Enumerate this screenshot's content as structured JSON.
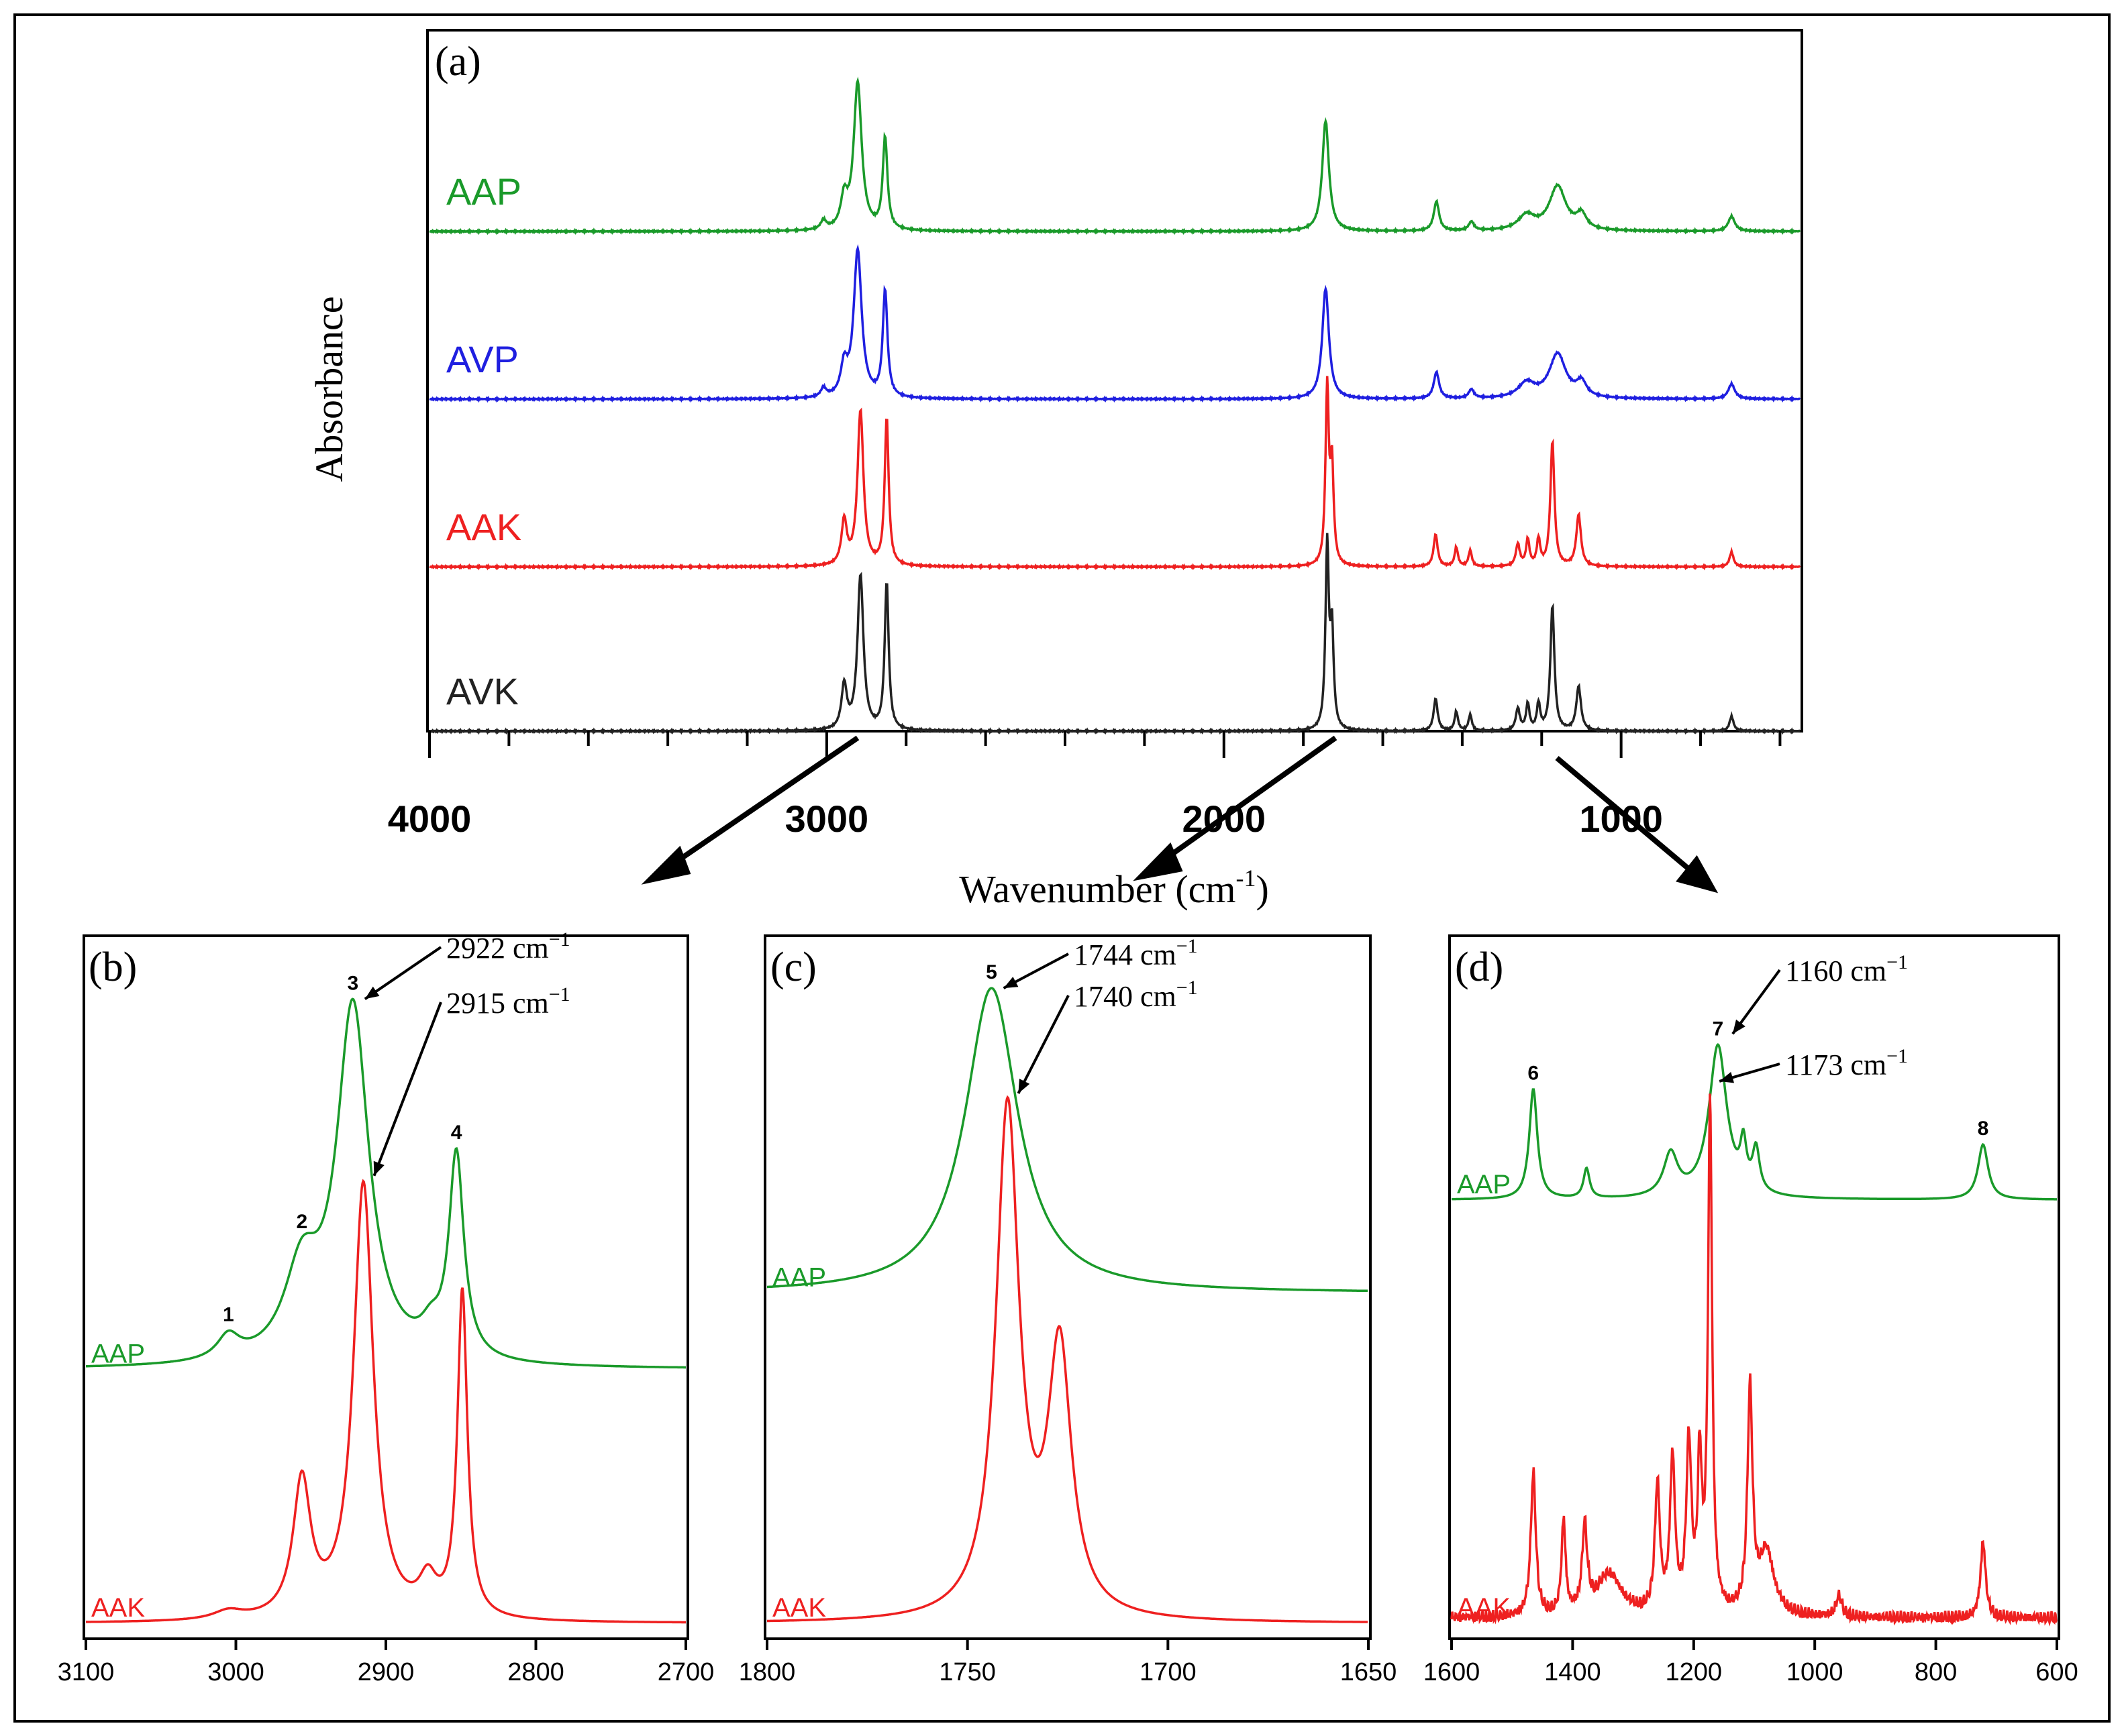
{
  "figure": {
    "ylabel": "Absorbance",
    "xlabel": "Wavenumber (cm",
    "xlabel_sup": "-1",
    "xlabel_end": ")",
    "colors": {
      "AAP": "#1a9a2a",
      "AVP": "#1f1fe0",
      "AAK": "#ee2020",
      "AVK": "#222222",
      "frame": "#000000"
    }
  },
  "chart_data": [
    {
      "id": "a",
      "type": "line",
      "panel_label": "(a)",
      "xlabel": "Wavenumber (cm-1)",
      "ylabel": "Absorbance",
      "xlim": [
        4000,
        550
      ],
      "xticks": [
        4000,
        3000,
        2000,
        1000
      ],
      "series": [
        {
          "name": "AAP",
          "offset": 3,
          "peaks": [
            [
              3008,
              0.06,
              8
            ],
            [
              2956,
              0.2,
              10
            ],
            [
              2922,
              1.0,
              12
            ],
            [
              2853,
              0.62,
              7
            ],
            [
              1744,
              0.75,
              10
            ],
            [
              1465,
              0.2,
              8
            ],
            [
              1377,
              0.06,
              8
            ],
            [
              1238,
              0.1,
              25
            ],
            [
              1160,
              0.3,
              25
            ],
            [
              1100,
              0.1,
              15
            ],
            [
              722,
              0.1,
              10
            ]
          ]
        },
        {
          "name": "AVP",
          "offset": 2,
          "peaks": [
            [
              3008,
              0.06,
              8
            ],
            [
              2956,
              0.2,
              10
            ],
            [
              2922,
              1.0,
              12
            ],
            [
              2853,
              0.72,
              7
            ],
            [
              1744,
              0.75,
              10
            ],
            [
              1465,
              0.18,
              8
            ],
            [
              1377,
              0.06,
              8
            ],
            [
              1238,
              0.1,
              25
            ],
            [
              1160,
              0.3,
              25
            ],
            [
              1100,
              0.1,
              15
            ],
            [
              722,
              0.1,
              10
            ]
          ]
        },
        {
          "name": "AAK",
          "offset": 1,
          "peaks": [
            [
              2956,
              0.3,
              8
            ],
            [
              2915,
              1.05,
              9
            ],
            [
              2849,
              1.0,
              6
            ],
            [
              1740,
              1.2,
              5
            ],
            [
              1728,
              0.65,
              5
            ],
            [
              1467,
              0.22,
              6
            ],
            [
              1415,
              0.13,
              5
            ],
            [
              1380,
              0.11,
              5
            ],
            [
              1260,
              0.15,
              6
            ],
            [
              1235,
              0.18,
              5
            ],
            [
              1208,
              0.18,
              5
            ],
            [
              1173,
              0.85,
              6
            ],
            [
              1107,
              0.35,
              7
            ],
            [
              722,
              0.1,
              6
            ]
          ]
        },
        {
          "name": "AVK",
          "offset": 0,
          "peaks": [
            [
              2956,
              0.3,
              8
            ],
            [
              2915,
              1.05,
              9
            ],
            [
              2849,
              1.0,
              6
            ],
            [
              1740,
              1.25,
              5
            ],
            [
              1728,
              0.65,
              5
            ],
            [
              1467,
              0.22,
              6
            ],
            [
              1415,
              0.13,
              5
            ],
            [
              1380,
              0.11,
              5
            ],
            [
              1260,
              0.15,
              6
            ],
            [
              1235,
              0.18,
              5
            ],
            [
              1208,
              0.18,
              5
            ],
            [
              1173,
              0.85,
              6
            ],
            [
              1107,
              0.3,
              7
            ],
            [
              722,
              0.1,
              6
            ]
          ]
        }
      ]
    },
    {
      "id": "b",
      "type": "line",
      "panel_label": "(b)",
      "xlim": [
        3100,
        2700
      ],
      "xticks": [
        3100,
        3000,
        2900,
        2800,
        2700
      ],
      "ylim": [
        0,
        1.6
      ],
      "series": [
        {
          "name": "AAP",
          "offset": 0.6,
          "peaks": [
            [
              3005,
              0.055,
              9
            ],
            [
              2956,
              0.2,
              14
            ],
            [
              2922,
              0.84,
              13
            ],
            [
              2853,
              0.48,
              6
            ],
            [
              2870,
              0.05,
              8
            ]
          ]
        },
        {
          "name": "AAK",
          "offset": 0.0,
          "peaks": [
            [
              3005,
              0.02,
              12
            ],
            [
              2956,
              0.32,
              7
            ],
            [
              2915,
              1.03,
              8
            ],
            [
              2872,
              0.08,
              7
            ],
            [
              2849,
              0.77,
              4
            ]
          ]
        }
      ],
      "annotations": [
        {
          "text": "2922 cm",
          "x": 2922,
          "sup": "−1"
        },
        {
          "text": "2915 cm",
          "x": 2915,
          "sup": "−1"
        }
      ],
      "peak_numbers": [
        {
          "n": "1",
          "x": 3005
        },
        {
          "n": "2",
          "x": 2956
        },
        {
          "n": "3",
          "x": 2922
        },
        {
          "n": "4",
          "x": 2853
        }
      ]
    },
    {
      "id": "c",
      "type": "line",
      "panel_label": "(c)",
      "xlim": [
        1800,
        1650
      ],
      "xticks": [
        1800,
        1750,
        1700,
        1650
      ],
      "ylim": [
        0,
        1.6
      ],
      "series": [
        {
          "name": "AAP",
          "offset": 0.78,
          "peaks": [
            [
              1744,
              0.72,
              8
            ]
          ]
        },
        {
          "name": "AAK",
          "offset": 0.0,
          "peaks": [
            [
              1740,
              1.2,
              3.5
            ],
            [
              1727,
              0.62,
              3.5
            ]
          ]
        }
      ],
      "annotations": [
        {
          "text": "1744 cm",
          "x": 1744,
          "sup": "−1"
        },
        {
          "text": "1740 cm",
          "x": 1740,
          "sup": "−1"
        }
      ],
      "peak_numbers": [
        {
          "n": "5",
          "x": 1744
        }
      ]
    },
    {
      "id": "d",
      "type": "line",
      "panel_label": "(d)",
      "xlim": [
        1600,
        600
      ],
      "xticks": [
        1600,
        1400,
        1200,
        1000,
        800,
        600
      ],
      "ylim": [
        0,
        1.6
      ],
      "series": [
        {
          "name": "AAP",
          "offset": 1.0,
          "peaks": [
            [
              1465,
              0.26,
              8
            ],
            [
              1377,
              0.07,
              6
            ],
            [
              1238,
              0.1,
              14
            ],
            [
              1160,
              0.36,
              18
            ],
            [
              1118,
              0.1,
              6
            ],
            [
              1097,
              0.1,
              7
            ],
            [
              722,
              0.13,
              10
            ]
          ]
        },
        {
          "name": "AAK",
          "offset": 0.0,
          "peaks": [
            [
              1465,
              0.34,
              5
            ],
            [
              1415,
              0.22,
              4
            ],
            [
              1380,
              0.2,
              5
            ],
            [
              1340,
              0.1,
              25
            ],
            [
              1260,
              0.3,
              5
            ],
            [
              1235,
              0.36,
              5
            ],
            [
              1208,
              0.4,
              5
            ],
            [
              1190,
              0.35,
              4
            ],
            [
              1173,
              1.2,
              4
            ],
            [
              1107,
              0.52,
              5
            ],
            [
              1080,
              0.15,
              15
            ],
            [
              960,
              0.05,
              6
            ],
            [
              722,
              0.18,
              5
            ]
          ]
        }
      ],
      "annotations": [
        {
          "text": "1160 cm",
          "x": 1160,
          "sup": "−1"
        },
        {
          "text": "1173 cm",
          "x": 1173,
          "sup": "−1"
        }
      ],
      "peak_numbers": [
        {
          "n": "6",
          "x": 1465
        },
        {
          "n": "7",
          "x": 1160
        },
        {
          "n": "8",
          "x": 722
        }
      ]
    }
  ]
}
